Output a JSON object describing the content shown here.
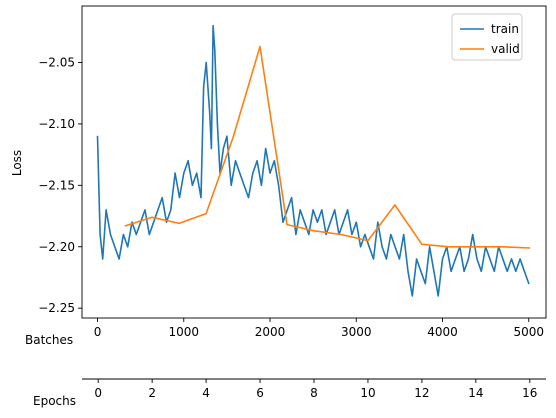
{
  "chart_data": {
    "type": "line",
    "title": "",
    "ylabel": "Loss",
    "xaxes": [
      {
        "label": "Batches",
        "range": [
          -180,
          5200
        ],
        "ticks": [
          0,
          1000,
          2000,
          3000,
          4000,
          5000
        ]
      },
      {
        "label": "Epochs",
        "range": [
          -0.6,
          16.6
        ],
        "ticks": [
          0,
          2,
          4,
          6,
          8,
          10,
          12,
          14,
          16
        ]
      }
    ],
    "ylim": [
      -2.258,
      -2.004
    ],
    "yticks": [
      -2.25,
      -2.2,
      -2.15,
      -2.1,
      -2.05
    ],
    "ytick_labels": [
      "−2.25",
      "−2.20",
      "−2.15",
      "−2.10",
      "−2.05"
    ],
    "grid": false,
    "legend": {
      "position": "top-right"
    },
    "series": [
      {
        "name": "train",
        "color": "#1f77b4",
        "x_axis": "Batches",
        "x": [
          0,
          30,
          60,
          100,
          150,
          200,
          250,
          300,
          350,
          400,
          450,
          500,
          550,
          600,
          650,
          700,
          750,
          800,
          850,
          900,
          950,
          1000,
          1050,
          1100,
          1150,
          1200,
          1230,
          1260,
          1300,
          1320,
          1340,
          1360,
          1390,
          1420,
          1460,
          1500,
          1550,
          1600,
          1650,
          1700,
          1750,
          1800,
          1850,
          1900,
          1950,
          2000,
          2050,
          2100,
          2150,
          2200,
          2250,
          2300,
          2350,
          2400,
          2450,
          2500,
          2550,
          2600,
          2650,
          2700,
          2750,
          2800,
          2850,
          2900,
          2950,
          3000,
          3050,
          3100,
          3150,
          3200,
          3250,
          3300,
          3350,
          3400,
          3450,
          3500,
          3550,
          3600,
          3650,
          3700,
          3750,
          3800,
          3850,
          3900,
          3950,
          4000,
          4050,
          4100,
          4150,
          4200,
          4250,
          4300,
          4350,
          4400,
          4450,
          4500,
          4550,
          4600,
          4650,
          4700,
          4750,
          4800,
          4850,
          4900,
          4950,
          5000
        ],
        "values": [
          -2.11,
          -2.19,
          -2.21,
          -2.17,
          -2.19,
          -2.2,
          -2.21,
          -2.19,
          -2.2,
          -2.18,
          -2.19,
          -2.18,
          -2.17,
          -2.19,
          -2.18,
          -2.17,
          -2.16,
          -2.18,
          -2.17,
          -2.14,
          -2.16,
          -2.14,
          -2.13,
          -2.15,
          -2.14,
          -2.16,
          -2.07,
          -2.05,
          -2.09,
          -2.12,
          -2.02,
          -2.04,
          -2.1,
          -2.14,
          -2.12,
          -2.11,
          -2.15,
          -2.13,
          -2.14,
          -2.15,
          -2.16,
          -2.14,
          -2.13,
          -2.15,
          -2.12,
          -2.14,
          -2.13,
          -2.15,
          -2.18,
          -2.17,
          -2.16,
          -2.19,
          -2.17,
          -2.18,
          -2.19,
          -2.17,
          -2.18,
          -2.17,
          -2.19,
          -2.18,
          -2.17,
          -2.19,
          -2.18,
          -2.17,
          -2.19,
          -2.18,
          -2.2,
          -2.19,
          -2.2,
          -2.21,
          -2.18,
          -2.2,
          -2.21,
          -2.19,
          -2.2,
          -2.21,
          -2.19,
          -2.22,
          -2.24,
          -2.21,
          -2.22,
          -2.23,
          -2.2,
          -2.22,
          -2.24,
          -2.21,
          -2.2,
          -2.22,
          -2.21,
          -2.2,
          -2.22,
          -2.21,
          -2.19,
          -2.21,
          -2.22,
          -2.2,
          -2.21,
          -2.22,
          -2.2,
          -2.21,
          -2.22,
          -2.21,
          -2.22,
          -2.21,
          -2.22,
          -2.23
        ]
      },
      {
        "name": "valid",
        "color": "#ff7f0e",
        "x_axis": "Epochs",
        "x": [
          1,
          2,
          3,
          4,
          5,
          6,
          7,
          8,
          9,
          10,
          11,
          12,
          13,
          14,
          15,
          16
        ],
        "values": [
          -2.183,
          -2.176,
          -2.181,
          -2.173,
          -2.111,
          -2.037,
          -2.182,
          -2.187,
          -2.19,
          -2.195,
          -2.166,
          -2.198,
          -2.2,
          -2.2,
          -2.2,
          -2.201
        ]
      }
    ]
  }
}
